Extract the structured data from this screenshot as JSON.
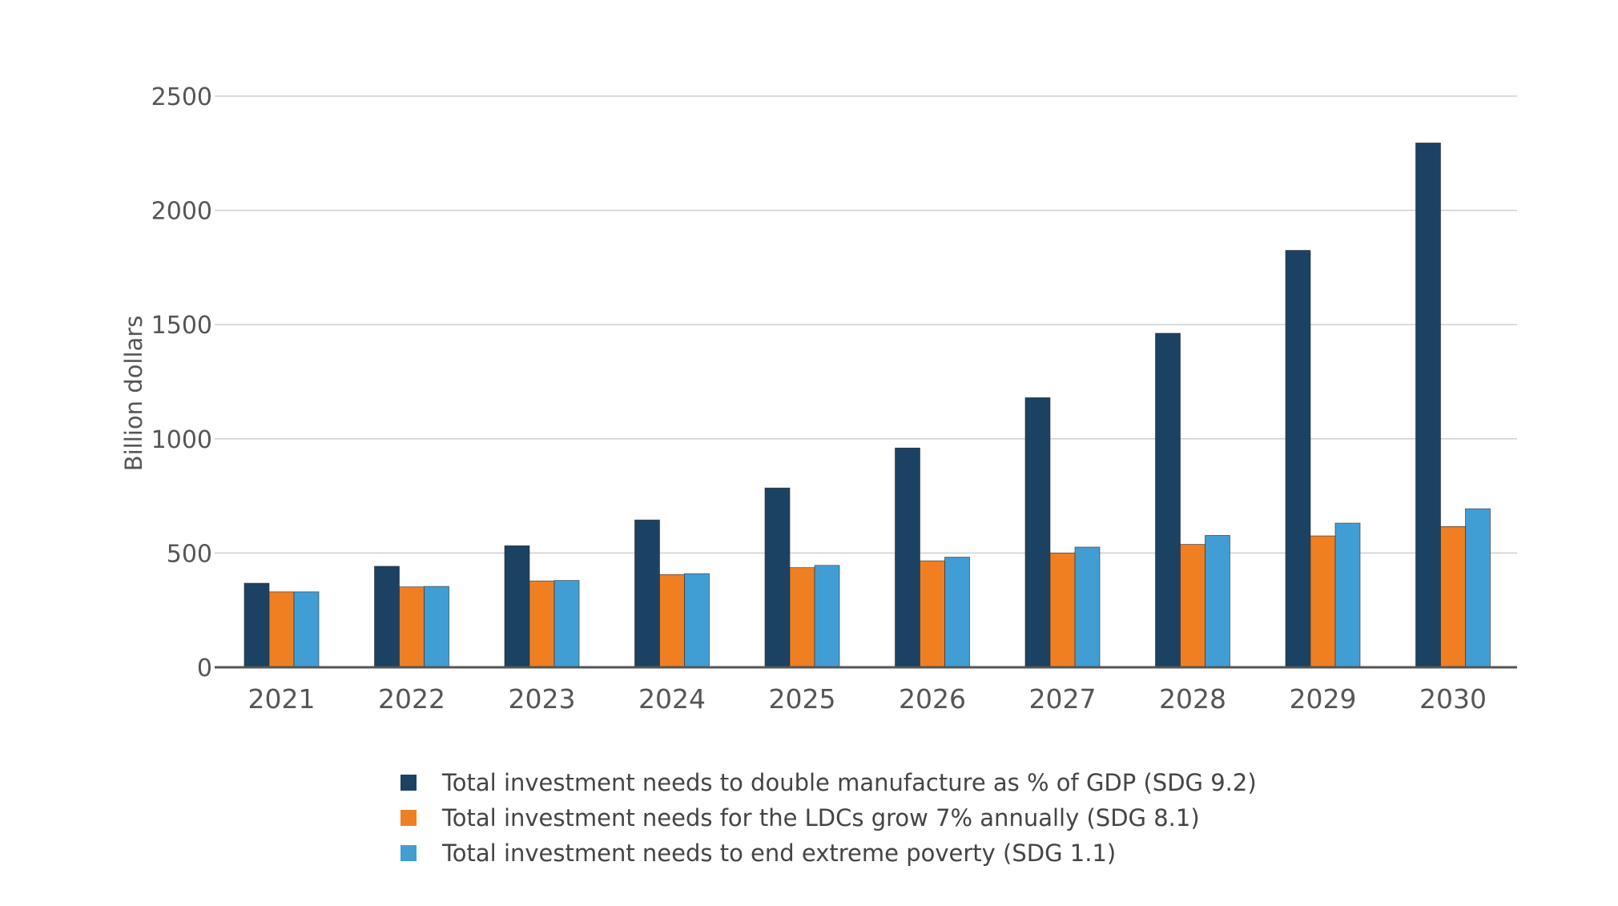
{
  "chart_data": {
    "type": "bar",
    "title": "",
    "xlabel": "",
    "ylabel": "Billion dollars",
    "ylim": [
      0,
      2500
    ],
    "yticks": [
      0,
      500,
      1000,
      1500,
      2000,
      2500
    ],
    "grid": true,
    "legend_position": "bottom",
    "categories": [
      "2021",
      "2022",
      "2023",
      "2024",
      "2025",
      "2026",
      "2027",
      "2028",
      "2029",
      "2030"
    ],
    "series": [
      {
        "name": "Total investment needs to double manufacture as % of GDP (SDG 9.2)",
        "color": "#1c4263",
        "values": [
          368,
          442,
          532,
          645,
          785,
          960,
          1180,
          1462,
          1825,
          2295
        ]
      },
      {
        "name": "Total investment needs for the LDCs grow 7% annually (SDG 8.1)",
        "color": "#f07f22",
        "values": [
          330,
          352,
          378,
          406,
          436,
          466,
          500,
          538,
          575,
          616
        ]
      },
      {
        "name": "Total investment needs to end extreme poverty (SDG 1.1)",
        "color": "#419ed4",
        "values": [
          330,
          354,
          380,
          410,
          446,
          482,
          526,
          577,
          631,
          694
        ]
      }
    ],
    "colors": {
      "gridline": "#cfcfcf",
      "axis": "#555555"
    }
  }
}
